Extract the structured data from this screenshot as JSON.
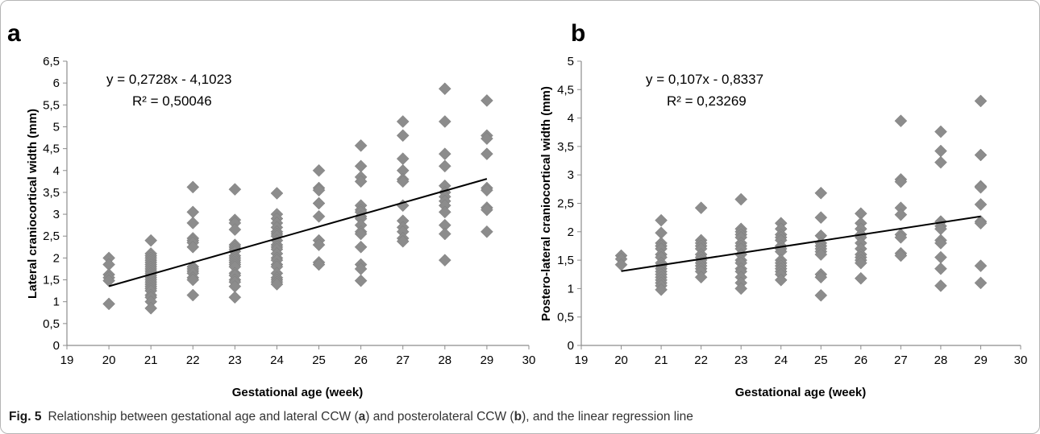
{
  "caption": {
    "label": "Fig. 5",
    "text_parts": [
      "Relationship between gestational age and lateral CCW (",
      "a",
      ") and posterolateral CCW (",
      "b",
      "), and the linear regression line"
    ]
  },
  "colors": {
    "marker": "#8c8c8c",
    "trendline": "#000000",
    "axis": "#8c8c8c",
    "text": "#000000"
  },
  "chart_data": [
    {
      "type": "scatter",
      "panel_label": "a",
      "xlabel": "Gestational age (week)",
      "ylabel": "Lateral craniocortical width (mm)",
      "xlim": [
        19,
        30
      ],
      "ylim": [
        0,
        6.5
      ],
      "xticks": [
        "19",
        "20",
        "21",
        "22",
        "23",
        "24",
        "25",
        "26",
        "27",
        "28",
        "29",
        "30"
      ],
      "yticks": [
        "0",
        "0,5",
        "1",
        "1,5",
        "2",
        "2,5",
        "3",
        "3,5",
        "4",
        "4,5",
        "5",
        "5,5",
        "6",
        "6,5"
      ],
      "grid": false,
      "legend": "none",
      "equation": "y = 0,2728x - 4,1023",
      "r_squared": "R² = 0,50046",
      "trendline": {
        "slope": 0.2728,
        "intercept": -4.1023,
        "x_range": [
          20,
          29
        ]
      },
      "points": [
        [
          20,
          2.0
        ],
        [
          20,
          1.85
        ],
        [
          20,
          1.62
        ],
        [
          20,
          1.55
        ],
        [
          20,
          1.48
        ],
        [
          20,
          0.95
        ],
        [
          21,
          2.4
        ],
        [
          21,
          2.1
        ],
        [
          21,
          2.05
        ],
        [
          21,
          2.0
        ],
        [
          21,
          1.95
        ],
        [
          21,
          1.9
        ],
        [
          21,
          1.85
        ],
        [
          21,
          1.8
        ],
        [
          21,
          1.75
        ],
        [
          21,
          1.7
        ],
        [
          21,
          1.65
        ],
        [
          21,
          1.6
        ],
        [
          21,
          1.55
        ],
        [
          21,
          1.5
        ],
        [
          21,
          1.45
        ],
        [
          21,
          1.4
        ],
        [
          21,
          1.35
        ],
        [
          21,
          1.3
        ],
        [
          21,
          1.25
        ],
        [
          21,
          1.15
        ],
        [
          21,
          1.1
        ],
        [
          21,
          1.0
        ],
        [
          21,
          0.85
        ],
        [
          22,
          3.62
        ],
        [
          22,
          3.05
        ],
        [
          22,
          2.8
        ],
        [
          22,
          2.45
        ],
        [
          22,
          2.4
        ],
        [
          22,
          2.35
        ],
        [
          22,
          2.25
        ],
        [
          22,
          1.8
        ],
        [
          22,
          1.75
        ],
        [
          22,
          1.7
        ],
        [
          22,
          1.65
        ],
        [
          22,
          1.55
        ],
        [
          22,
          1.5
        ],
        [
          22,
          1.15
        ],
        [
          23,
          3.57
        ],
        [
          23,
          2.87
        ],
        [
          23,
          2.8
        ],
        [
          23,
          2.65
        ],
        [
          23,
          2.3
        ],
        [
          23,
          2.25
        ],
        [
          23,
          2.2
        ],
        [
          23,
          2.15
        ],
        [
          23,
          2.05
        ],
        [
          23,
          2.0
        ],
        [
          23,
          1.95
        ],
        [
          23,
          1.9
        ],
        [
          23,
          1.85
        ],
        [
          23,
          1.8
        ],
        [
          23,
          1.65
        ],
        [
          23,
          1.6
        ],
        [
          23,
          1.5
        ],
        [
          23,
          1.45
        ],
        [
          23,
          1.35
        ],
        [
          23,
          1.1
        ],
        [
          24,
          3.48
        ],
        [
          24,
          3.0
        ],
        [
          24,
          2.9
        ],
        [
          24,
          2.8
        ],
        [
          24,
          2.7
        ],
        [
          24,
          2.6
        ],
        [
          24,
          2.55
        ],
        [
          24,
          2.5
        ],
        [
          24,
          2.4
        ],
        [
          24,
          2.3
        ],
        [
          24,
          2.25
        ],
        [
          24,
          2.2
        ],
        [
          24,
          2.1
        ],
        [
          24,
          2.0
        ],
        [
          24,
          1.95
        ],
        [
          24,
          1.85
        ],
        [
          24,
          1.8
        ],
        [
          24,
          1.65
        ],
        [
          24,
          1.55
        ],
        [
          24,
          1.5
        ],
        [
          24,
          1.45
        ],
        [
          24,
          1.4
        ],
        [
          25,
          4.0
        ],
        [
          25,
          3.6
        ],
        [
          25,
          3.55
        ],
        [
          25,
          3.25
        ],
        [
          25,
          2.95
        ],
        [
          25,
          2.4
        ],
        [
          25,
          2.3
        ],
        [
          25,
          1.9
        ],
        [
          25,
          1.85
        ],
        [
          26,
          4.57
        ],
        [
          26,
          4.1
        ],
        [
          26,
          3.85
        ],
        [
          26,
          3.75
        ],
        [
          26,
          3.2
        ],
        [
          26,
          3.1
        ],
        [
          26,
          3.05
        ],
        [
          26,
          2.95
        ],
        [
          26,
          2.9
        ],
        [
          26,
          2.75
        ],
        [
          26,
          2.6
        ],
        [
          26,
          2.55
        ],
        [
          26,
          2.25
        ],
        [
          26,
          1.85
        ],
        [
          26,
          1.75
        ],
        [
          26,
          1.48
        ],
        [
          27,
          5.12
        ],
        [
          27,
          4.8
        ],
        [
          27,
          4.27
        ],
        [
          27,
          4.0
        ],
        [
          27,
          3.8
        ],
        [
          27,
          3.75
        ],
        [
          27,
          3.2
        ],
        [
          27,
          2.85
        ],
        [
          27,
          2.7
        ],
        [
          27,
          2.6
        ],
        [
          27,
          2.45
        ],
        [
          27,
          2.38
        ],
        [
          28,
          5.87
        ],
        [
          28,
          5.12
        ],
        [
          28,
          4.38
        ],
        [
          28,
          4.1
        ],
        [
          28,
          3.65
        ],
        [
          28,
          3.5
        ],
        [
          28,
          3.4
        ],
        [
          28,
          3.3
        ],
        [
          28,
          3.2
        ],
        [
          28,
          3.05
        ],
        [
          28,
          2.75
        ],
        [
          28,
          2.55
        ],
        [
          28,
          1.95
        ],
        [
          29,
          5.6
        ],
        [
          29,
          4.8
        ],
        [
          29,
          4.73
        ],
        [
          29,
          4.38
        ],
        [
          29,
          3.6
        ],
        [
          29,
          3.55
        ],
        [
          29,
          3.15
        ],
        [
          29,
          3.1
        ],
        [
          29,
          2.6
        ]
      ]
    },
    {
      "type": "scatter",
      "panel_label": "b",
      "xlabel": "Gestational age (week)",
      "ylabel": "Postero-lateral craniocortical width (mm)",
      "xlim": [
        19,
        30
      ],
      "ylim": [
        0,
        5
      ],
      "xticks": [
        "19",
        "20",
        "21",
        "22",
        "23",
        "24",
        "25",
        "26",
        "27",
        "28",
        "29",
        "30"
      ],
      "yticks": [
        "0",
        "0,5",
        "1",
        "1,5",
        "2",
        "2,5",
        "3",
        "3,5",
        "4",
        "4,5",
        "5"
      ],
      "grid": false,
      "legend": "none",
      "equation": "y = 0,107x - 0,8337",
      "r_squared": "R² = 0,23269",
      "trendline": {
        "slope": 0.107,
        "intercept": -0.8337,
        "x_range": [
          20,
          29
        ]
      },
      "points": [
        [
          20,
          1.58
        ],
        [
          20,
          1.52
        ],
        [
          20,
          1.42
        ],
        [
          21,
          2.2
        ],
        [
          21,
          1.98
        ],
        [
          21,
          1.8
        ],
        [
          21,
          1.75
        ],
        [
          21,
          1.7
        ],
        [
          21,
          1.6
        ],
        [
          21,
          1.55
        ],
        [
          21,
          1.45
        ],
        [
          21,
          1.4
        ],
        [
          21,
          1.35
        ],
        [
          21,
          1.3
        ],
        [
          21,
          1.25
        ],
        [
          21,
          1.2
        ],
        [
          21,
          1.15
        ],
        [
          21,
          1.1
        ],
        [
          21,
          1.05
        ],
        [
          21,
          0.98
        ],
        [
          22,
          2.42
        ],
        [
          22,
          1.85
        ],
        [
          22,
          1.8
        ],
        [
          22,
          1.75
        ],
        [
          22,
          1.7
        ],
        [
          22,
          1.6
        ],
        [
          22,
          1.55
        ],
        [
          22,
          1.5
        ],
        [
          22,
          1.45
        ],
        [
          22,
          1.4
        ],
        [
          22,
          1.35
        ],
        [
          22,
          1.3
        ],
        [
          22,
          1.2
        ],
        [
          23,
          2.57
        ],
        [
          23,
          2.05
        ],
        [
          23,
          2.0
        ],
        [
          23,
          1.95
        ],
        [
          23,
          1.9
        ],
        [
          23,
          1.8
        ],
        [
          23,
          1.75
        ],
        [
          23,
          1.7
        ],
        [
          23,
          1.6
        ],
        [
          23,
          1.5
        ],
        [
          23,
          1.45
        ],
        [
          23,
          1.35
        ],
        [
          23,
          1.3
        ],
        [
          23,
          1.2
        ],
        [
          23,
          1.1
        ],
        [
          23,
          1.0
        ],
        [
          24,
          2.15
        ],
        [
          24,
          2.05
        ],
        [
          24,
          1.95
        ],
        [
          24,
          1.9
        ],
        [
          24,
          1.85
        ],
        [
          24,
          1.75
        ],
        [
          24,
          1.7
        ],
        [
          24,
          1.65
        ],
        [
          24,
          1.5
        ],
        [
          24,
          1.45
        ],
        [
          24,
          1.4
        ],
        [
          24,
          1.35
        ],
        [
          24,
          1.3
        ],
        [
          24,
          1.25
        ],
        [
          24,
          1.15
        ],
        [
          25,
          2.68
        ],
        [
          25,
          2.25
        ],
        [
          25,
          1.93
        ],
        [
          25,
          1.8
        ],
        [
          25,
          1.75
        ],
        [
          25,
          1.7
        ],
        [
          25,
          1.65
        ],
        [
          25,
          1.6
        ],
        [
          25,
          1.25
        ],
        [
          25,
          1.2
        ],
        [
          25,
          0.88
        ],
        [
          26,
          2.32
        ],
        [
          26,
          2.15
        ],
        [
          26,
          2.05
        ],
        [
          26,
          1.95
        ],
        [
          26,
          1.9
        ],
        [
          26,
          1.8
        ],
        [
          26,
          1.7
        ],
        [
          26,
          1.6
        ],
        [
          26,
          1.55
        ],
        [
          26,
          1.5
        ],
        [
          26,
          1.45
        ],
        [
          26,
          1.18
        ],
        [
          27,
          3.95
        ],
        [
          27,
          2.92
        ],
        [
          27,
          2.88
        ],
        [
          27,
          2.42
        ],
        [
          27,
          2.3
        ],
        [
          27,
          1.95
        ],
        [
          27,
          1.9
        ],
        [
          27,
          1.62
        ],
        [
          27,
          1.58
        ],
        [
          28,
          3.76
        ],
        [
          28,
          3.42
        ],
        [
          28,
          3.22
        ],
        [
          28,
          2.18
        ],
        [
          28,
          2.1
        ],
        [
          28,
          2.05
        ],
        [
          28,
          1.85
        ],
        [
          28,
          1.8
        ],
        [
          28,
          1.55
        ],
        [
          28,
          1.35
        ],
        [
          28,
          1.05
        ],
        [
          29,
          4.3
        ],
        [
          29,
          3.35
        ],
        [
          29,
          2.8
        ],
        [
          29,
          2.78
        ],
        [
          29,
          2.48
        ],
        [
          29,
          2.18
        ],
        [
          29,
          2.15
        ],
        [
          29,
          1.4
        ],
        [
          29,
          1.1
        ]
      ]
    }
  ]
}
